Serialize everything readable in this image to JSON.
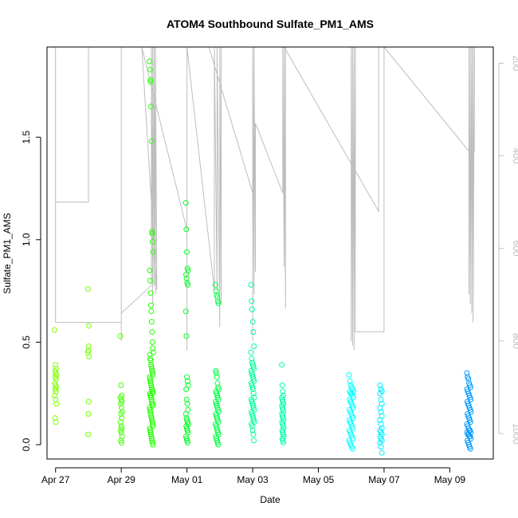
{
  "chart_data": {
    "type": "scatter",
    "title": "ATOM4 Southbound Sulfate_PM1_AMS",
    "xlabel": "Date",
    "ylabel": "Sulfate_PM1_AMS",
    "x_ticks": [
      "Apr 27",
      "Apr 29",
      "May 01",
      "May 03",
      "May 05",
      "May 07",
      "May 09"
    ],
    "y_ticks": [
      "0.0",
      "0.5",
      "1.0",
      "1.5"
    ],
    "y2_ticks": [
      "200",
      "400",
      "600",
      "800",
      "1000"
    ],
    "xlim": [
      "2014-04-26T17:45",
      "2014-05-10T07:48"
    ],
    "ylim": [
      -0.07,
      1.94
    ],
    "y2lim": [
      165,
      1055
    ],
    "y2_reversed": true,
    "grid": false,
    "colors": {
      "line_secondary": "#bdbdbd",
      "apr27": "#7fff00",
      "apr28": "#76ff00",
      "apr29": "#44ff00",
      "apr30": "#22ff00",
      "may01": "#00ff22",
      "may02": "#00ff44",
      "may03": "#00ff99",
      "may04": "#00ffaa",
      "may06": "#00ffff",
      "may07": "#00eeff",
      "may09": "#0099ff"
    },
    "scatter_groups": [
      {
        "center": "2014-04-27T00:00",
        "spread_h": 1.4,
        "color_key": "apr27",
        "values": [
          0.56,
          0.39,
          0.37,
          0.36,
          0.35,
          0.34,
          0.33,
          0.32,
          0.3,
          0.29,
          0.28,
          0.27,
          0.26,
          0.24,
          0.22,
          0.2,
          0.13,
          0.11
        ]
      },
      {
        "center": "2014-04-28T00:00",
        "spread_h": 0.8,
        "color_key": "apr28",
        "values": [
          0.76,
          0.58,
          0.48,
          0.46,
          0.45,
          0.43,
          0.21,
          0.15,
          0.05
        ]
      },
      {
        "center": "2014-04-29T00:00",
        "spread_h": 1.3,
        "color_key": "apr29",
        "values": [
          0.53,
          0.29,
          0.24,
          0.23,
          0.22,
          0.21,
          0.2,
          0.18,
          0.16,
          0.15,
          0.13,
          0.11,
          0.09,
          0.08,
          0.07,
          0.06,
          0.04,
          0.02,
          0.01
        ]
      },
      {
        "center": "2014-04-29T22:00",
        "spread_h": 2.6,
        "color_key": "apr30",
        "values": [
          1.87,
          1.83,
          1.78,
          1.77,
          1.65,
          1.48,
          1.04,
          1.03,
          0.99,
          0.94,
          0.85,
          0.8,
          0.74,
          0.68,
          0.65,
          0.6,
          0.55,
          0.5,
          0.47,
          0.45,
          0.44,
          0.42,
          0.41,
          0.39,
          0.38,
          0.37,
          0.36,
          0.35,
          0.34,
          0.33,
          0.32,
          0.31,
          0.3,
          0.29,
          0.28,
          0.27,
          0.26,
          0.26,
          0.25,
          0.25,
          0.24,
          0.24,
          0.23,
          0.22,
          0.21,
          0.2,
          0.2,
          0.19,
          0.18,
          0.17,
          0.16,
          0.15,
          0.14,
          0.13,
          0.12,
          0.11,
          0.1,
          0.09,
          0.08,
          0.07,
          0.06,
          0.05,
          0.04,
          0.03,
          0.02,
          0.01,
          0.0
        ]
      },
      {
        "center": "2014-05-01T00:00",
        "spread_h": 1.8,
        "color_key": "may01",
        "values": [
          1.18,
          1.05,
          0.94,
          0.86,
          0.85,
          0.83,
          0.81,
          0.79,
          0.78,
          0.65,
          0.53,
          0.33,
          0.31,
          0.29,
          0.27,
          0.22,
          0.2,
          0.17,
          0.15,
          0.13,
          0.12,
          0.11,
          0.1,
          0.09,
          0.08,
          0.07,
          0.06,
          0.04,
          0.03,
          0.02,
          0.01
        ]
      },
      {
        "center": "2014-05-01T22:00",
        "spread_h": 2.4,
        "color_key": "may02",
        "values": [
          0.78,
          0.75,
          0.73,
          0.72,
          0.7,
          0.69,
          0.36,
          0.35,
          0.33,
          0.3,
          0.28,
          0.27,
          0.26,
          0.25,
          0.24,
          0.23,
          0.22,
          0.21,
          0.2,
          0.19,
          0.18,
          0.17,
          0.16,
          0.15,
          0.14,
          0.13,
          0.12,
          0.11,
          0.1,
          0.09,
          0.08,
          0.07,
          0.06,
          0.05,
          0.04,
          0.03,
          0.02,
          0.01,
          0.0
        ]
      },
      {
        "center": "2014-05-03T00:00",
        "spread_h": 2.4,
        "color_key": "may03",
        "values": [
          0.78,
          0.7,
          0.66,
          0.6,
          0.55,
          0.48,
          0.45,
          0.42,
          0.4,
          0.39,
          0.38,
          0.37,
          0.36,
          0.35,
          0.34,
          0.33,
          0.32,
          0.31,
          0.3,
          0.29,
          0.28,
          0.27,
          0.25,
          0.23,
          0.22,
          0.21,
          0.2,
          0.19,
          0.18,
          0.17,
          0.16,
          0.15,
          0.14,
          0.13,
          0.12,
          0.11,
          0.1,
          0.09,
          0.07,
          0.05,
          0.02
        ]
      },
      {
        "center": "2014-05-03T22:00",
        "spread_h": 1.5,
        "color_key": "may04",
        "values": [
          0.39,
          0.29,
          0.26,
          0.24,
          0.23,
          0.22,
          0.21,
          0.2,
          0.19,
          0.18,
          0.17,
          0.16,
          0.15,
          0.14,
          0.13,
          0.12,
          0.11,
          0.1,
          0.09,
          0.08,
          0.07,
          0.06,
          0.05,
          0.04,
          0.03,
          0.02,
          0.01
        ]
      },
      {
        "center": "2014-05-06T00:00",
        "spread_h": 3.2,
        "color_key": "may06",
        "values": [
          0.34,
          0.31,
          0.29,
          0.28,
          0.27,
          0.26,
          0.26,
          0.25,
          0.25,
          0.24,
          0.23,
          0.22,
          0.21,
          0.2,
          0.19,
          0.18,
          0.17,
          0.16,
          0.15,
          0.14,
          0.13,
          0.12,
          0.11,
          0.1,
          0.09,
          0.08,
          0.07,
          0.06,
          0.05,
          0.04,
          0.03,
          0.02,
          0.01,
          0.0,
          -0.01,
          -0.02
        ]
      },
      {
        "center": "2014-05-06T22:00",
        "spread_h": 2.0,
        "color_key": "may07",
        "values": [
          0.29,
          0.27,
          0.26,
          0.25,
          0.22,
          0.2,
          0.18,
          0.16,
          0.14,
          0.12,
          0.1,
          0.08,
          0.07,
          0.06,
          0.05,
          0.04,
          0.03,
          0.02,
          0.01,
          -0.01,
          -0.04
        ]
      },
      {
        "center": "2014-05-09T14:00",
        "spread_h": 3.0,
        "color_key": "may09",
        "values": [
          0.35,
          0.33,
          0.32,
          0.3,
          0.29,
          0.28,
          0.27,
          0.26,
          0.25,
          0.24,
          0.23,
          0.22,
          0.21,
          0.2,
          0.19,
          0.18,
          0.17,
          0.16,
          0.15,
          0.14,
          0.13,
          0.12,
          0.11,
          0.1,
          0.09,
          0.08,
          0.07,
          0.07,
          0.06,
          0.06,
          0.05,
          0.05,
          0.04,
          0.04,
          0.03,
          0.02,
          0.01,
          0.0,
          -0.01,
          -0.02
        ]
      }
    ],
    "secondary_series": [
      {
        "x": "2014-04-27T00:00",
        "y": 165
      },
      {
        "x": "2014-04-27T00:00",
        "y": 500
      },
      {
        "x": "2014-04-28T00:00",
        "y": 500
      },
      {
        "x": "2014-04-28T00:00",
        "y": 165
      },
      {
        "x": "2014-04-27T00:00",
        "y": 165
      },
      {
        "x": "2014-04-27T00:00",
        "y": 760
      },
      {
        "x": "2014-04-29T00:00",
        "y": 760
      },
      {
        "x": "2014-04-29T00:00",
        "y": 165
      },
      {
        "x": "2014-04-29T00:00",
        "y": 800
      },
      {
        "x": "2014-04-29T00:00",
        "y": 740
      },
      {
        "x": "2014-04-29T22:00",
        "y": 680
      },
      {
        "x": "2014-04-29T22:00",
        "y": 165
      },
      {
        "x": "2014-04-29T23:00",
        "y": 720
      },
      {
        "x": "2014-04-29T23:00",
        "y": 165
      },
      {
        "x": "2014-04-30T00:00",
        "y": 680
      },
      {
        "x": "2014-04-30T00:00",
        "y": 165
      },
      {
        "x": "2014-04-30T01:00",
        "y": 700
      },
      {
        "x": "2014-04-30T01:00",
        "y": 165
      },
      {
        "x": "2014-04-30T02:00",
        "y": 690
      },
      {
        "x": "2014-04-29T15:00",
        "y": 165
      },
      {
        "x": "2014-05-01T00:00",
        "y": 560
      },
      {
        "x": "2014-05-01T00:00",
        "y": 165
      },
      {
        "x": "2014-05-01T00:00",
        "y": 820
      },
      {
        "x": "2014-05-01T00:00",
        "y": 165
      },
      {
        "x": "2014-05-01T20:00",
        "y": 690
      },
      {
        "x": "2014-05-01T20:00",
        "y": 165
      },
      {
        "x": "2014-05-01T22:00",
        "y": 690
      },
      {
        "x": "2014-05-01T22:00",
        "y": 165
      },
      {
        "x": "2014-05-02T00:00",
        "y": 770
      },
      {
        "x": "2014-05-02T00:00",
        "y": 165
      },
      {
        "x": "2014-05-02T01:00",
        "y": 720
      },
      {
        "x": "2014-05-02T01:00",
        "y": 165
      },
      {
        "x": "2014-05-01T16:00",
        "y": 165
      },
      {
        "x": "2014-05-03T00:00",
        "y": 480
      },
      {
        "x": "2014-05-03T00:00",
        "y": 800
      },
      {
        "x": "2014-05-03T00:00",
        "y": 165
      },
      {
        "x": "2014-05-03T01:00",
        "y": 700
      },
      {
        "x": "2014-05-03T01:00",
        "y": 165
      },
      {
        "x": "2014-05-03T02:00",
        "y": 650
      },
      {
        "x": "2014-05-03T02:00",
        "y": 330
      },
      {
        "x": "2014-05-03T22:00",
        "y": 480
      },
      {
        "x": "2014-05-03T22:00",
        "y": 165
      },
      {
        "x": "2014-05-03T23:00",
        "y": 640
      },
      {
        "x": "2014-05-03T23:00",
        "y": 165
      },
      {
        "x": "2014-05-04T00:00",
        "y": 730
      },
      {
        "x": "2014-05-04T00:00",
        "y": 165
      },
      {
        "x": "2014-05-03T23:00",
        "y": 165
      },
      {
        "x": "2014-05-06T20:00",
        "y": 520
      },
      {
        "x": "2014-05-06T20:00",
        "y": 165
      },
      {
        "x": "2014-05-06T00:00",
        "y": 165
      },
      {
        "x": "2014-05-06T00:00",
        "y": 800
      },
      {
        "x": "2014-05-06T01:00",
        "y": 165
      },
      {
        "x": "2014-05-06T01:00",
        "y": 810
      },
      {
        "x": "2014-05-06T02:00",
        "y": 165
      },
      {
        "x": "2014-05-06T02:00",
        "y": 820
      },
      {
        "x": "2014-05-06T03:00",
        "y": 165
      },
      {
        "x": "2014-05-06T03:00",
        "y": 780
      },
      {
        "x": "2014-05-06T03:00",
        "y": 780
      },
      {
        "x": "2014-05-07T00:00",
        "y": 780
      },
      {
        "x": "2014-05-07T00:00",
        "y": 165
      },
      {
        "x": "2014-05-09T14:00",
        "y": 390
      },
      {
        "x": "2014-05-09T14:00",
        "y": 165
      },
      {
        "x": "2014-05-09T14:00",
        "y": 700
      },
      {
        "x": "2014-05-09T15:00",
        "y": 165
      },
      {
        "x": "2014-05-09T15:00",
        "y": 720
      },
      {
        "x": "2014-05-09T16:00",
        "y": 165
      },
      {
        "x": "2014-05-09T16:00",
        "y": 740
      },
      {
        "x": "2014-05-09T17:00",
        "y": 165
      },
      {
        "x": "2014-05-09T17:00",
        "y": 760
      },
      {
        "x": "2014-05-09T18:00",
        "y": 165
      },
      {
        "x": "2014-05-09T18:00",
        "y": 390
      }
    ]
  }
}
